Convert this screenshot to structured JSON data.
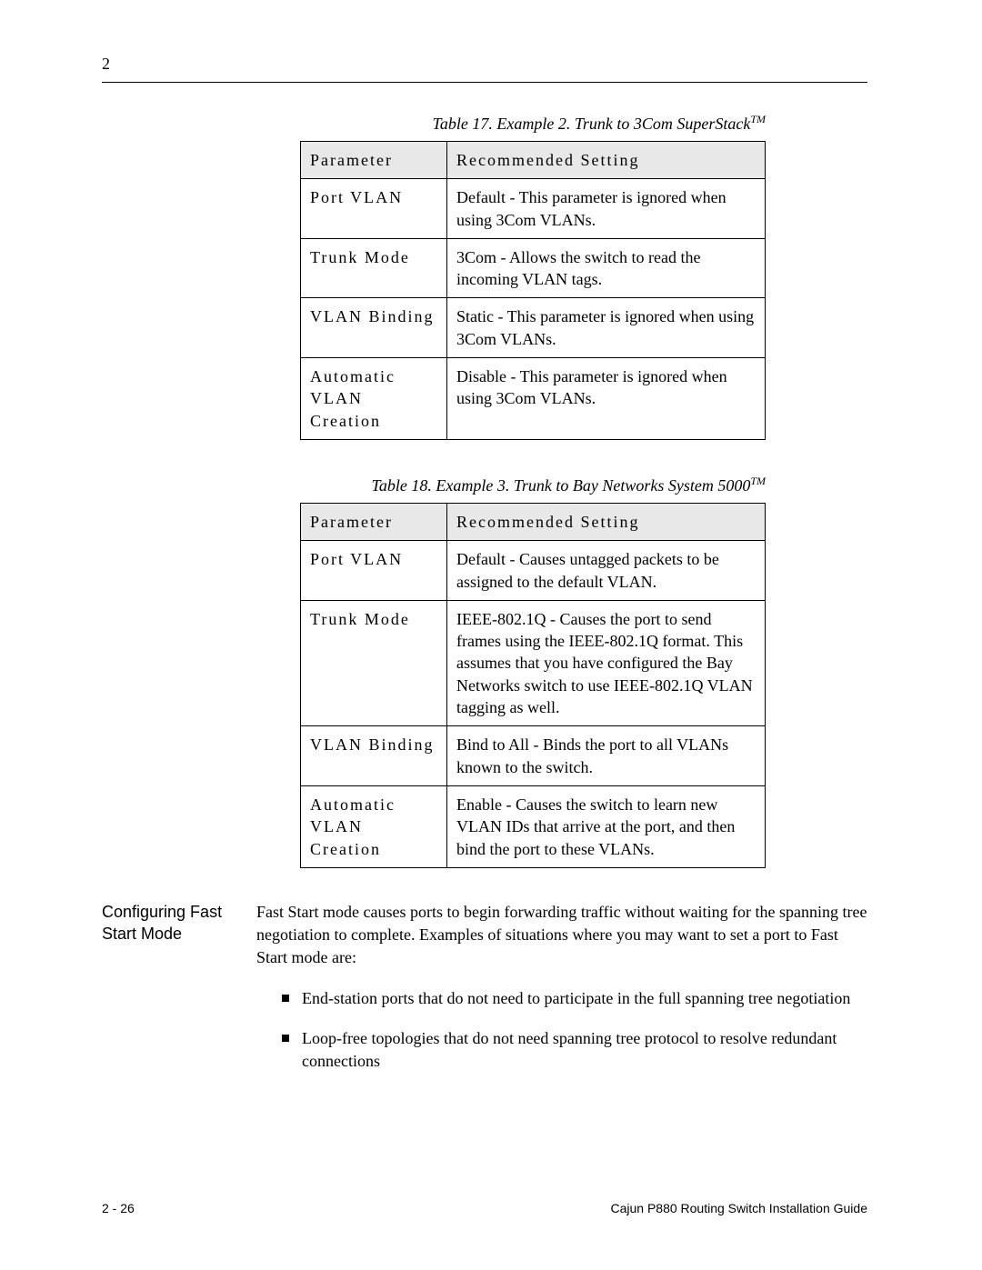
{
  "page_number_top": "2",
  "table17": {
    "caption_main": "Table 17.  Example 2. Trunk to 3Com SuperStack",
    "caption_tm": "TM",
    "header_param": "Parameter",
    "header_setting": "Recommended Setting",
    "rows": [
      {
        "param": "Port VLAN",
        "setting": "Default - This parameter is ignored when using 3Com VLANs."
      },
      {
        "param": "Trunk Mode",
        "setting": "3Com  - Allows the switch to read the incoming VLAN tags."
      },
      {
        "param": "VLAN Binding",
        "setting": "Static - This parameter is ignored when using 3Com VLANs."
      },
      {
        "param": "Automatic VLAN Creation",
        "setting": "Disable - This parameter is ignored when using 3Com VLANs."
      }
    ]
  },
  "table18": {
    "caption_main": "Table 18.  Example 3. Trunk to Bay Networks System 5000",
    "caption_tm": "TM",
    "header_param": "Parameter",
    "header_setting": "Recommended Setting",
    "rows": [
      {
        "param": "Port VLAN",
        "setting": "Default - Causes untagged packets to be assigned to the default VLAN."
      },
      {
        "param": "Trunk Mode",
        "setting": "IEEE-802.1Q - Causes the port to send frames using the IEEE-802.1Q format. This assumes that you have configured the Bay Networks switch to use IEEE-802.1Q VLAN tagging as well."
      },
      {
        "param": "VLAN Binding",
        "setting": "Bind to All - Binds the port to all VLANs known to the switch."
      },
      {
        "param": "Automatic VLAN Creation",
        "setting": "Enable - Causes the switch to learn new VLAN IDs that arrive at the port, and then bind the port to these VLANs."
      }
    ]
  },
  "section": {
    "heading": "Configuring Fast Start Mode",
    "intro": "Fast Start mode causes ports to begin forwarding traffic without waiting for the spanning tree negotiation to complete. Examples of situations where you may want to set a port to Fast Start mode are:",
    "bullets": [
      "End-station ports that do not need to participate in the full spanning tree negotiation",
      "Loop-free topologies that do not need spanning tree protocol to resolve redundant connections"
    ]
  },
  "footer": {
    "left": "2 - 26",
    "right": "Cajun P880 Routing Switch Installation Guide"
  },
  "colors": {
    "text": "#000000",
    "background": "#ffffff",
    "table_header_bg": "#e8e8e8",
    "border": "#000000"
  },
  "typography": {
    "body_font": "Times New Roman",
    "heading_font": "Arial",
    "body_fontsize": 18,
    "footer_fontsize": 14,
    "letter_spacing_param": 2
  }
}
